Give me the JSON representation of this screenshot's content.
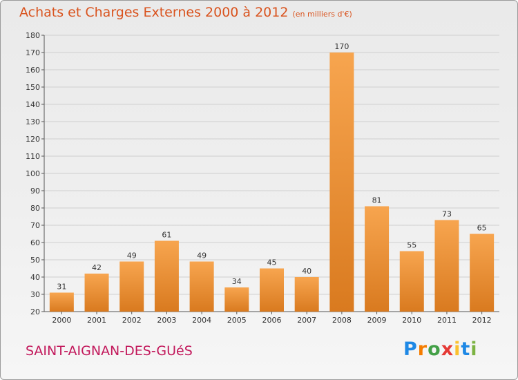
{
  "header": {
    "title": "Achats et Charges Externes 2000 à 2012",
    "subtitle": "(en milliers d'€)"
  },
  "footer": {
    "commune": "SAINT-AIGNAN-DES-GUéS",
    "brand_letters": [
      "P",
      "r",
      "o",
      "x",
      "i",
      "t",
      "i"
    ],
    "brand_colors": [
      "#1e88e5",
      "#f57c00",
      "#43a047",
      "#e53935",
      "#fbc02d",
      "#1e88e5",
      "#7cb342"
    ]
  },
  "colors": {
    "bar_light": "#f7a54f",
    "bar_dark": "#d97a1f",
    "title": "#d9531e",
    "commune": "#c2185b"
  },
  "chart_data": {
    "type": "bar",
    "categories": [
      "2000",
      "2001",
      "2002",
      "2003",
      "2004",
      "2005",
      "2006",
      "2007",
      "2008",
      "2009",
      "2010",
      "2011",
      "2012"
    ],
    "values": [
      31,
      42,
      49,
      61,
      49,
      34,
      45,
      40,
      170,
      81,
      55,
      73,
      65
    ],
    "ylim": [
      20,
      180
    ],
    "yticks": [
      20,
      30,
      40,
      50,
      60,
      70,
      80,
      90,
      100,
      110,
      120,
      130,
      140,
      150,
      160,
      170,
      180
    ],
    "grid": true,
    "title": "Achats et Charges Externes 2000 à 2012",
    "xlabel": "",
    "ylabel": ""
  }
}
